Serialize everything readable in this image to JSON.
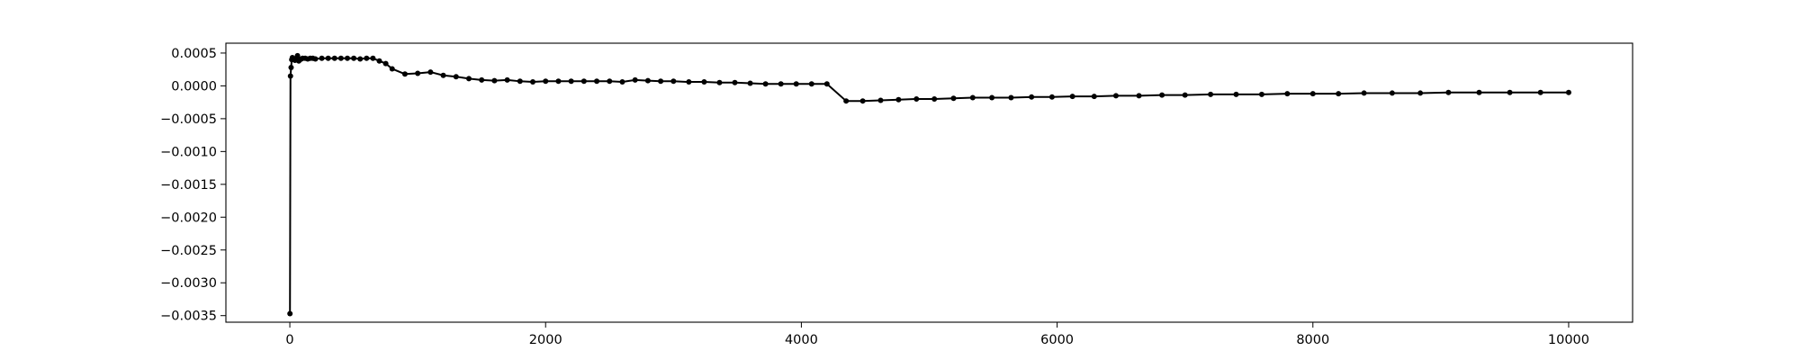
{
  "chart_data": {
    "type": "line",
    "title": "",
    "xlabel": "",
    "ylabel": "",
    "xlim": [
      -500,
      10500
    ],
    "ylim": [
      -0.0036,
      0.00065
    ],
    "xticks": [
      0,
      2000,
      4000,
      6000,
      8000,
      10000
    ],
    "xtick_labels": [
      "0",
      "2000",
      "4000",
      "6000",
      "8000",
      "10000"
    ],
    "yticks": [
      0.0005,
      0.0,
      -0.0005,
      -0.001,
      -0.0015,
      -0.002,
      -0.0025,
      -0.003,
      -0.0035
    ],
    "ytick_labels": [
      "0.0005",
      "0.0000",
      "−0.0005",
      "−0.0010",
      "−0.0015",
      "−0.0020",
      "−0.0025",
      "−0.0030",
      "−0.0035"
    ],
    "grid": false,
    "marker": "circle",
    "color": "#000000",
    "series": [
      {
        "x": [
          1,
          5,
          10,
          15,
          20,
          30,
          40,
          50,
          60,
          70,
          80,
          90,
          100,
          120,
          140,
          160,
          180,
          200,
          250,
          300,
          350,
          400,
          450,
          500,
          550,
          600,
          650,
          700,
          750,
          800,
          900,
          1000,
          1100,
          1200,
          1300,
          1400,
          1500,
          1600,
          1700,
          1800,
          1900,
          2000,
          2100,
          2200,
          2300,
          2400,
          2500,
          2600,
          2700,
          2800,
          2900,
          3000,
          3120,
          3240,
          3360,
          3480,
          3600,
          3720,
          3840,
          3960,
          4080,
          4200,
          4350,
          4480,
          4620,
          4760,
          4900,
          5040,
          5190,
          5340,
          5490,
          5640,
          5800,
          5960,
          6120,
          6290,
          6460,
          6640,
          6820,
          7000,
          7200,
          7400,
          7600,
          7800,
          8000,
          8200,
          8400,
          8620,
          8840,
          9060,
          9300,
          9540,
          9780,
          10000
        ],
        "y": [
          -0.00347,
          0.00015,
          0.00028,
          0.0004,
          0.00043,
          0.00041,
          0.00039,
          0.00042,
          0.00046,
          0.00038,
          0.0004,
          0.00041,
          0.00042,
          0.00042,
          0.00041,
          0.00042,
          0.00042,
          0.00041,
          0.00042,
          0.00042,
          0.00042,
          0.00042,
          0.00042,
          0.00042,
          0.00041,
          0.00042,
          0.00042,
          0.00038,
          0.00034,
          0.00026,
          0.00018,
          0.00019,
          0.00021,
          0.00016,
          0.00014,
          0.00011,
          9e-05,
          8e-05,
          9e-05,
          7e-05,
          6e-05,
          7e-05,
          7e-05,
          7e-05,
          7e-05,
          7e-05,
          7e-05,
          6e-05,
          9e-05,
          8e-05,
          7e-05,
          7e-05,
          6e-05,
          6e-05,
          5e-05,
          5e-05,
          4e-05,
          3e-05,
          3e-05,
          3e-05,
          3e-05,
          3e-05,
          -0.00023,
          -0.00023,
          -0.00022,
          -0.00021,
          -0.0002,
          -0.0002,
          -0.00019,
          -0.00018,
          -0.00018,
          -0.00018,
          -0.00017,
          -0.00017,
          -0.00016,
          -0.00016,
          -0.00015,
          -0.00015,
          -0.00014,
          -0.00014,
          -0.00013,
          -0.00013,
          -0.00013,
          -0.00012,
          -0.00012,
          -0.00012,
          -0.00011,
          -0.00011,
          -0.00011,
          -0.0001,
          -0.0001,
          -0.0001,
          -0.0001,
          -0.0001
        ]
      }
    ]
  }
}
